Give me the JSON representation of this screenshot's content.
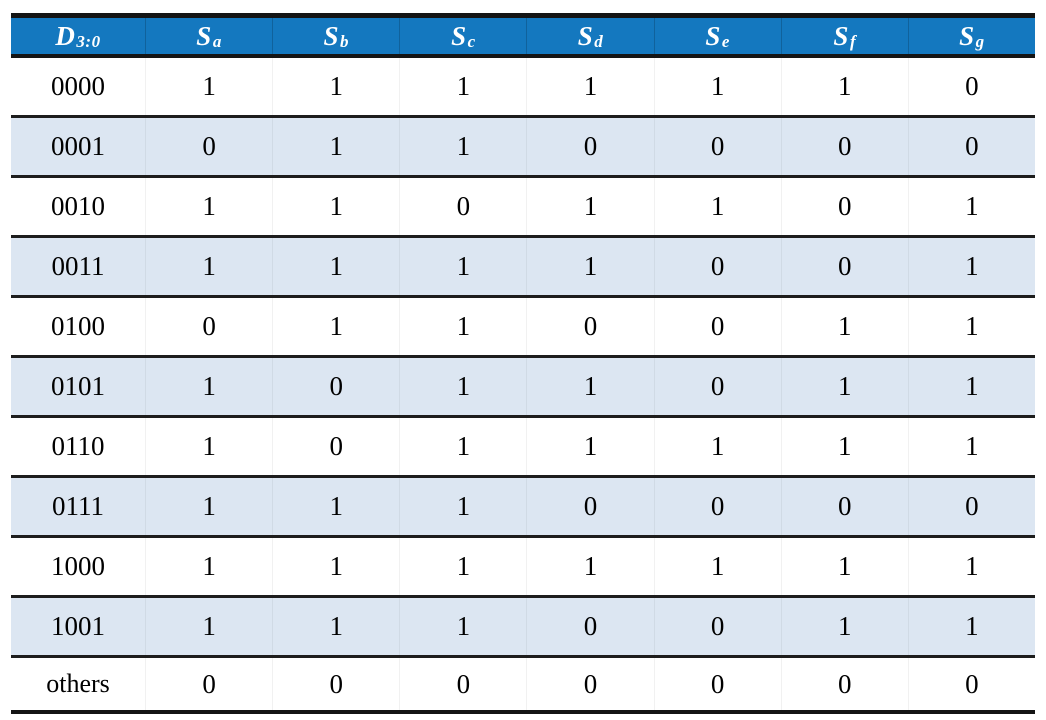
{
  "colors": {
    "header_bg": "#1478BF",
    "header_text": "#FFFFFF",
    "row_even_bg": "#FFFFFF",
    "row_odd_bg": "#DCE6F2",
    "rule_color": "#141414",
    "body_text": "#000000"
  },
  "table": {
    "columns": [
      {
        "base": "D",
        "sub": "3:0"
      },
      {
        "base": "S",
        "sub": "a"
      },
      {
        "base": "S",
        "sub": "b"
      },
      {
        "base": "S",
        "sub": "c"
      },
      {
        "base": "S",
        "sub": "d"
      },
      {
        "base": "S",
        "sub": "e"
      },
      {
        "base": "S",
        "sub": "f"
      },
      {
        "base": "S",
        "sub": "g"
      }
    ],
    "rows": [
      {
        "input": "0000",
        "values": [
          "1",
          "1",
          "1",
          "1",
          "1",
          "1",
          "0"
        ]
      },
      {
        "input": "0001",
        "values": [
          "0",
          "1",
          "1",
          "0",
          "0",
          "0",
          "0"
        ]
      },
      {
        "input": "0010",
        "values": [
          "1",
          "1",
          "0",
          "1",
          "1",
          "0",
          "1"
        ]
      },
      {
        "input": "0011",
        "values": [
          "1",
          "1",
          "1",
          "1",
          "0",
          "0",
          "1"
        ]
      },
      {
        "input": "0100",
        "values": [
          "0",
          "1",
          "1",
          "0",
          "0",
          "1",
          "1"
        ]
      },
      {
        "input": "0101",
        "values": [
          "1",
          "0",
          "1",
          "1",
          "0",
          "1",
          "1"
        ]
      },
      {
        "input": "0110",
        "values": [
          "1",
          "0",
          "1",
          "1",
          "1",
          "1",
          "1"
        ]
      },
      {
        "input": "0111",
        "values": [
          "1",
          "1",
          "1",
          "0",
          "0",
          "0",
          "0"
        ]
      },
      {
        "input": "1000",
        "values": [
          "1",
          "1",
          "1",
          "1",
          "1",
          "1",
          "1"
        ]
      },
      {
        "input": "1001",
        "values": [
          "1",
          "1",
          "1",
          "0",
          "0",
          "1",
          "1"
        ]
      },
      {
        "input": "others",
        "values": [
          "0",
          "0",
          "0",
          "0",
          "0",
          "0",
          "0"
        ]
      }
    ]
  }
}
